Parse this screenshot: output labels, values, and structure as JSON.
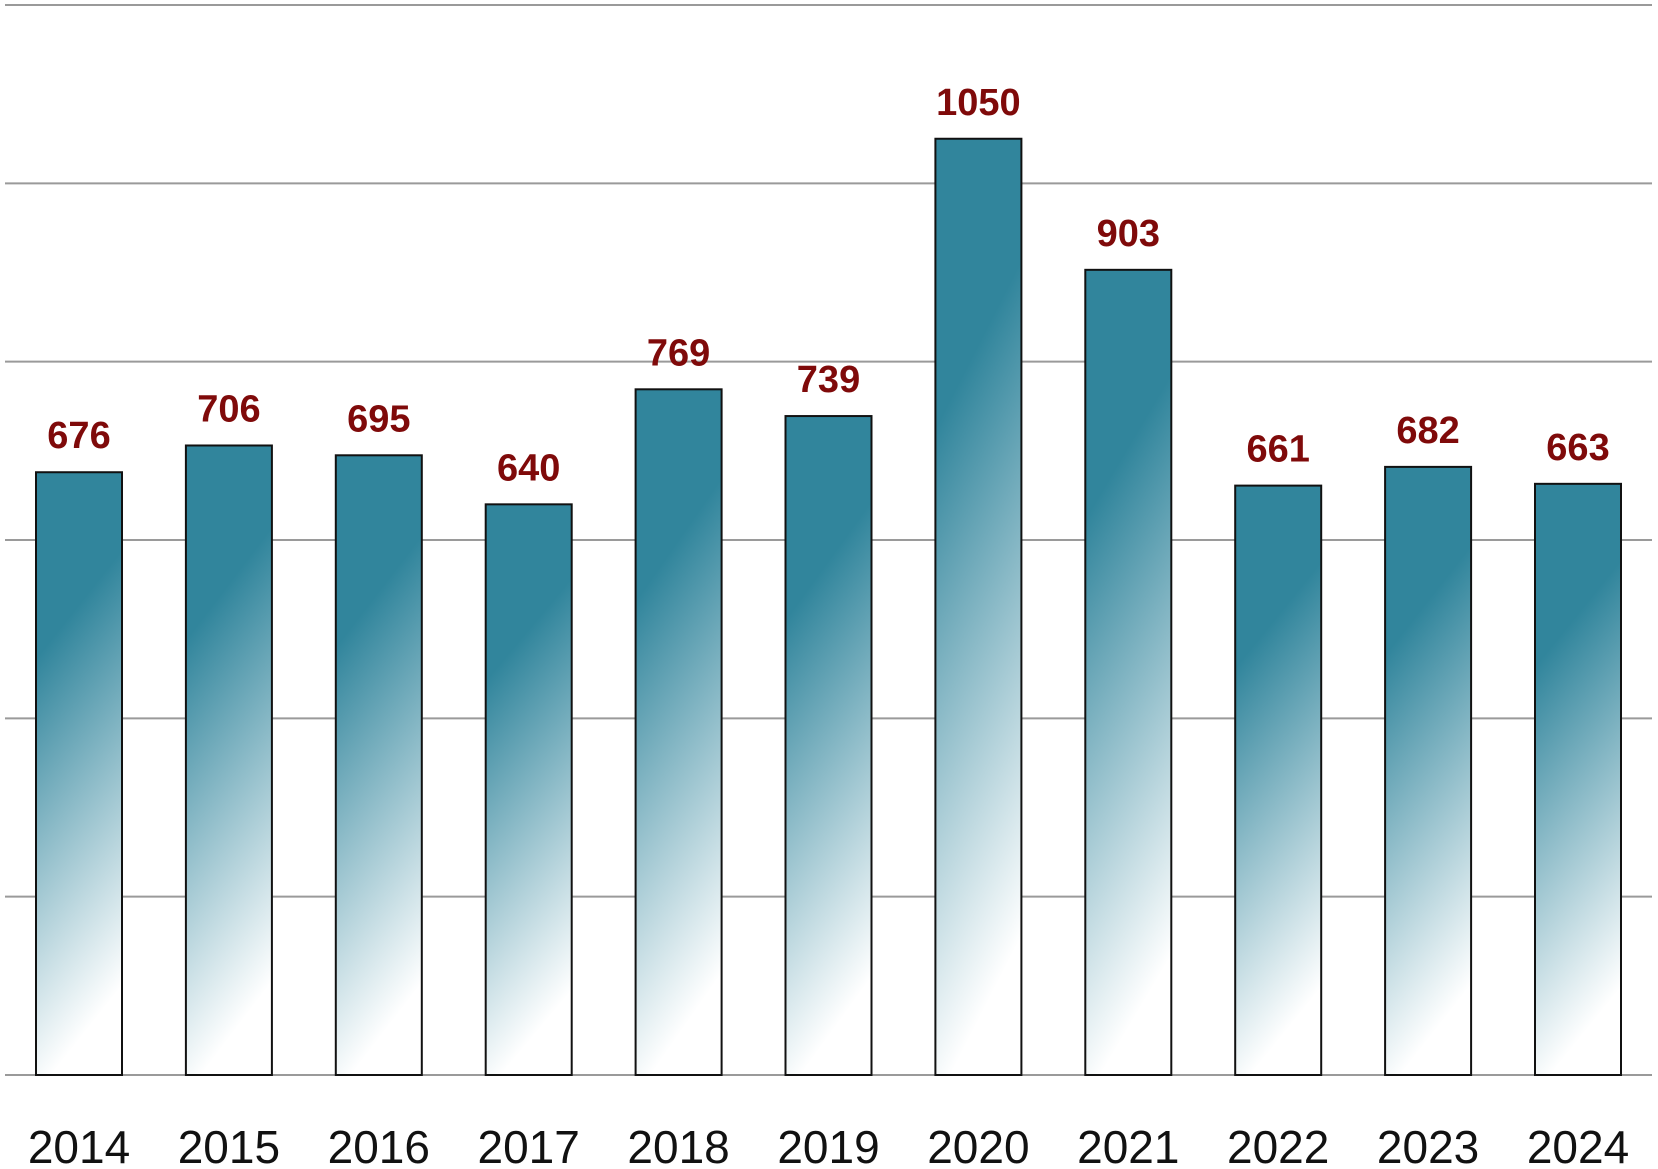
{
  "chart_data": {
    "type": "bar",
    "title": "",
    "xlabel": "",
    "ylabel": "",
    "categories": [
      "2014",
      "2015",
      "2016",
      "2017",
      "2018",
      "2019",
      "2020",
      "2021",
      "2022",
      "2023",
      "2024"
    ],
    "values": [
      676,
      706,
      695,
      640,
      769,
      739,
      1050,
      903,
      661,
      682,
      663
    ],
    "ylim": [
      0,
      1200
    ],
    "gridline_step": 200,
    "grid": true,
    "legend": "none",
    "data_labels": true,
    "colors": {
      "bar_top": "#31859c",
      "bar_bottom": "#ffffff",
      "bar_outline": "#111111",
      "value_label": "#7f0a0a",
      "gridline": "#9a9a9a"
    }
  }
}
